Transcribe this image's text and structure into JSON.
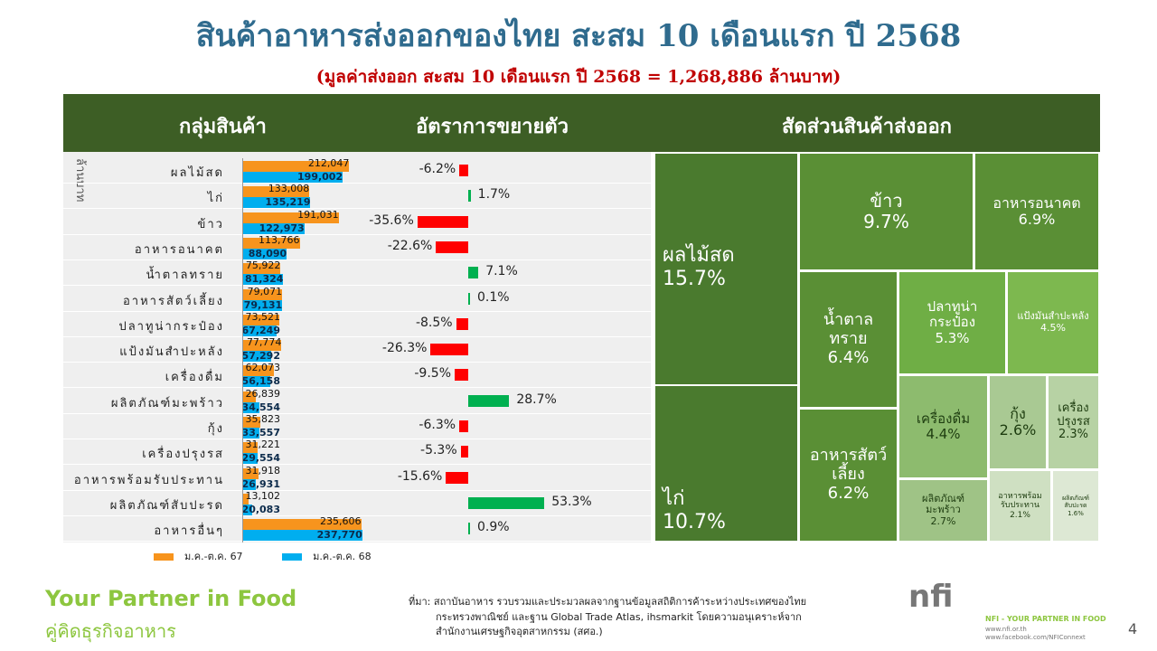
{
  "title": "สินค้าอาหารส่งออกของไทย สะสม 10 เดือนแรก ปี 2568",
  "subtitle": "(มูลค่าส่งออก สะสม 10 เดือนแรก  ปี 2568   =   1,268,886 ล้านบาท)",
  "header": {
    "col1": "กลุ่มสินค้า",
    "col2": "อัตราการขยายตัว",
    "col3": "สัดส่วนสินค้าส่งออก"
  },
  "colors": {
    "y67": "#f7941d",
    "y68": "#00aeef",
    "positive": "#00b050",
    "negative": "#ff0000",
    "header": "#3d5e25"
  },
  "chart_data": [
    {
      "type": "bar",
      "orientation": "horizontal",
      "ylabel": "ล้านบาท",
      "categories": [
        "ผลไม้สด",
        "ไก่",
        "ข้าว",
        "อาหารอนาคต",
        "น้ำตาลทราย",
        "อาหารสัตว์เลี้ยง",
        "ปลาทูน่ากระป๋อง",
        "แป้งมันสำปะหลัง",
        "เครื่องดื่ม",
        "ผลิตภัณฑ์มะพร้าว",
        "กุ้ง",
        "เครื่องปรุงรส",
        "อาหารพร้อมรับประทาน",
        "ผลิตภัณฑ์สับปะรด",
        "อาหารอื่นๆ"
      ],
      "series": [
        {
          "name": "ม.ค.-ต.ค. 67",
          "values": [
            212047,
            133008,
            191031,
            113766,
            75922,
            79071,
            73521,
            77774,
            62073,
            26839,
            35823,
            31221,
            31918,
            13102,
            235606
          ],
          "labels": [
            "212,047",
            "133,008",
            "191,031",
            "113,766",
            "75,922",
            "79,071",
            "73,521",
            "77,774",
            "62,073",
            "26,839",
            "35,823",
            "31,221",
            "31,918",
            "13,102",
            "235,606"
          ]
        },
        {
          "name": "ม.ค.-ต.ค. 68",
          "values": [
            199002,
            135219,
            122973,
            88090,
            81324,
            79131,
            67249,
            57292,
            56158,
            34554,
            33557,
            29554,
            26931,
            20083,
            237770
          ],
          "labels": [
            "199,002",
            "135,219",
            "122,973",
            "88,090",
            "81,324",
            "79,131",
            "67,249",
            "57,292",
            "56,158",
            "34,554",
            "33,557",
            "29,554",
            "26,931",
            "20,083",
            "237,770"
          ]
        }
      ]
    },
    {
      "type": "bar",
      "orientation": "horizontal",
      "title": "อัตราการขยายตัว",
      "values": [
        -6.2,
        1.7,
        -35.6,
        -22.6,
        7.1,
        0.1,
        -8.5,
        -26.3,
        -9.5,
        28.7,
        -6.3,
        -5.3,
        -15.6,
        53.3,
        0.9
      ],
      "labels": [
        "-6.2%",
        "1.7%",
        "-35.6%",
        "-22.6%",
        "7.1%",
        "0.1%",
        "-8.5%",
        "-26.3%",
        "-9.5%",
        "28.7%",
        "-6.3%",
        "-5.3%",
        "-15.6%",
        "53.3%",
        "0.9%"
      ]
    },
    {
      "type": "treemap",
      "title": "สัดส่วนสินค้าส่งออก",
      "tiles": [
        {
          "label": "ผลไม้สด",
          "pct": "15.7%",
          "value": 15.7,
          "color": "#4a7a2e"
        },
        {
          "label": "ไก่",
          "pct": "10.7%",
          "value": 10.7,
          "color": "#4a7a2e"
        },
        {
          "label": "ข้าว",
          "pct": "9.7%",
          "value": 9.7,
          "color": "#5a8f35"
        },
        {
          "label": "อาหารอนาคต",
          "pct": "6.9%",
          "value": 6.9,
          "color": "#5a8f35"
        },
        {
          "label": "น้ำตาลทราย",
          "pct": "6.4%",
          "value": 6.4,
          "color": "#5a8f35"
        },
        {
          "label": "อาหารสัตว์เลี้ยง",
          "pct": "6.2%",
          "value": 6.2,
          "color": "#5a8f35"
        },
        {
          "label": "ปลาทูน่ากระป๋อง",
          "pct": "5.3%",
          "value": 5.3,
          "color": "#6fae45"
        },
        {
          "label": "แป้งมันสำปะหลัง",
          "pct": "4.5%",
          "value": 4.5,
          "color": "#7db84f"
        },
        {
          "label": "เครื่องดื่ม",
          "pct": "4.4%",
          "value": 4.4,
          "color": "#8dbb6e"
        },
        {
          "label": "กุ้ง",
          "pct": "2.6%",
          "value": 2.6,
          "color": "#a9c993"
        },
        {
          "label": "เครื่องปรุงรส",
          "pct": "2.3%",
          "value": 2.3,
          "color": "#b7d2a4"
        },
        {
          "label": "ผลิตภัณฑ์มะพร้าว",
          "pct": "2.7%",
          "value": 2.7,
          "color": "#9fc386"
        },
        {
          "label": "อาหารพร้อมรับประทาน",
          "pct": "2.1%",
          "value": 2.1,
          "color": "#cfe0c2"
        },
        {
          "label": "ผลิตภัณฑ์สับปะรด",
          "pct": "1.6%",
          "value": 1.6,
          "color": "#dde8d4"
        }
      ]
    }
  ],
  "footer": {
    "slogan_en": "Your Partner in Food",
    "slogan_th": "คู่คิดธุรกิจอาหาร",
    "source": [
      "ที่มา: สถาบันอาหาร รวบรวมและประมวลผลจากฐานข้อมูลสถิติการค้าระหว่างประเทศของไทย",
      "กระทรวงพาณิชย์ และฐาน Global Trade Atlas, ihsmarkit โดยความอนุเคราะห์จาก",
      "สำนักงานเศรษฐกิจอุตสาหกรรม (สศอ.)"
    ],
    "logo": "nfi",
    "tagline": "NFI - YOUR PARTNER IN FOOD",
    "url1": "www.nfi.or.th",
    "url2": "www.facebook.com/NFIConnext",
    "page": "4"
  }
}
